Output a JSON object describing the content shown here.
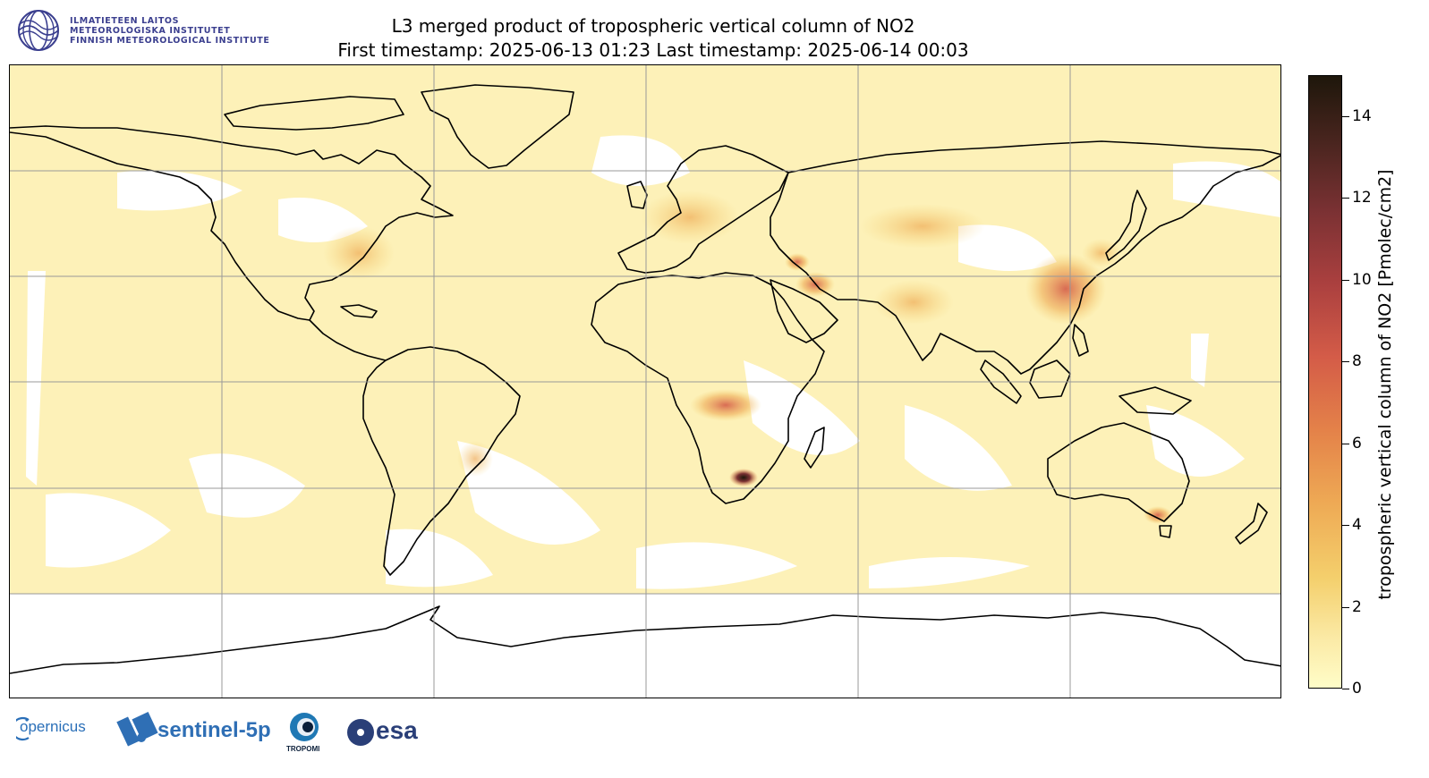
{
  "header": {
    "title_line1": "L3 merged product of tropospheric vertical column of NO2",
    "title_line2": "First timestamp: 2025-06-13 01:23   Last timestamp: 2025-06-14 00:03"
  },
  "institute_logo": {
    "lines": [
      "ILMATIETEEN LAITOS",
      "METEOROLOGISKA INSTITUTET",
      "FINNISH METEOROLOGICAL INSTITUTE"
    ]
  },
  "colorbar": {
    "label": "tropospheric vertical column of NO2 [Pmolec/cm2]",
    "ticks": [
      "0",
      "2",
      "4",
      "6",
      "8",
      "10",
      "12",
      "14"
    ],
    "tick_values": [
      0,
      2,
      4,
      6,
      8,
      10,
      12,
      14
    ],
    "vmin": 0,
    "vmax": 15,
    "colors": [
      "#fffdc8",
      "#f4cf6c",
      "#e48249",
      "#ab403f",
      "#4a251f",
      "#1e170b"
    ]
  },
  "map": {
    "projection": "equirectangular",
    "gridlines": true,
    "grid_color": "#999999",
    "coastline_color": "#000000",
    "field_color": "#fdf1b8",
    "hotspots": [
      {
        "name": "Highveld, South Africa",
        "level": "very high"
      },
      {
        "name": "North China Plain",
        "level": "high"
      },
      {
        "name": "Persian Gulf",
        "level": "high"
      },
      {
        "name": "Central Africa fires",
        "level": "high"
      },
      {
        "name": "Europe",
        "level": "moderate"
      },
      {
        "name": "Southeast Australia",
        "level": "moderate"
      }
    ]
  },
  "footer_logos": {
    "copernicus": "opernicus",
    "sentinel": "sentinel-5p",
    "tropomi": "TROPOMI",
    "esa": "esa"
  }
}
